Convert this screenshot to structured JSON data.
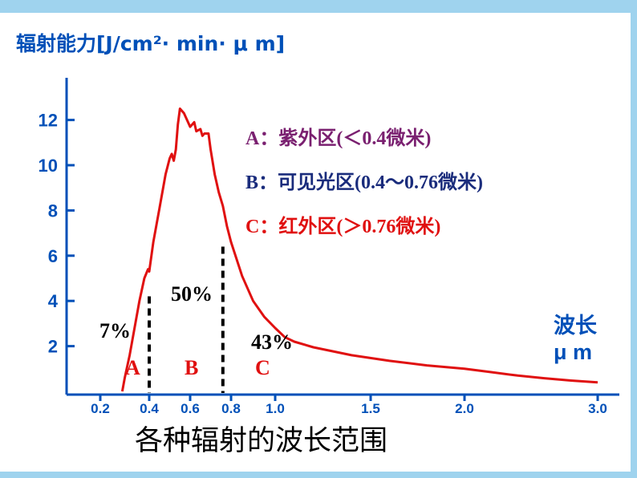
{
  "colors": {
    "axis": "#0050b8",
    "curve": "#e01010",
    "legend_a": "#7a2070",
    "legend_b": "#1a2c7c",
    "legend_c": "#e01010",
    "frame": "#9fd3ee"
  },
  "chart_data": {
    "type": "line",
    "title": "",
    "ylabel": "辐射能力[J/cm²· min· μ m]",
    "xlabel_top": "波长",
    "xlabel_unit": "μ m",
    "xlabel": "各种辐射的波长范围",
    "xlim": [
      0.2,
      3.0
    ],
    "ylim": [
      0,
      14
    ],
    "x_ticks": [
      0.2,
      0.4,
      0.6,
      0.8,
      1.0,
      1.5,
      2.0,
      3.0
    ],
    "x_tick_labels": [
      "0.2",
      "0.4",
      "0.6",
      "0.8",
      "1.0",
      "1.5",
      "2.0",
      "3.0"
    ],
    "y_ticks": [
      2,
      4,
      6,
      8,
      10,
      12
    ],
    "y_tick_labels": [
      "2",
      "4",
      "6",
      "8",
      "10",
      "12"
    ],
    "series": [
      {
        "name": "",
        "x": [
          0.29,
          0.3,
          0.32,
          0.34,
          0.36,
          0.38,
          0.395,
          0.4,
          0.42,
          0.45,
          0.48,
          0.5,
          0.51,
          0.52,
          0.53,
          0.54,
          0.55,
          0.57,
          0.6,
          0.62,
          0.63,
          0.65,
          0.66,
          0.67,
          0.69,
          0.7,
          0.72,
          0.74,
          0.76,
          0.78,
          0.8,
          0.85,
          0.9,
          0.95,
          1.0,
          1.05,
          1.1,
          1.2,
          1.4,
          1.6,
          1.8,
          2.0,
          2.2,
          2.4,
          2.6,
          2.8,
          3.0
        ],
        "y": [
          0.0,
          0.6,
          1.6,
          2.8,
          4.0,
          5.0,
          5.4,
          5.3,
          6.6,
          8.1,
          9.6,
          10.3,
          10.5,
          10.2,
          10.7,
          11.8,
          12.5,
          12.3,
          11.7,
          11.9,
          11.5,
          11.6,
          11.3,
          11.4,
          11.4,
          10.7,
          9.6,
          8.8,
          8.2,
          7.3,
          6.6,
          5.1,
          4.0,
          3.3,
          2.8,
          2.4,
          2.2,
          1.95,
          1.6,
          1.35,
          1.15,
          1.0,
          0.85,
          0.7,
          0.58,
          0.48,
          0.4
        ]
      }
    ],
    "dividers": [
      0.4,
      0.76
    ],
    "regions": [
      {
        "band": "A",
        "percent": "7%"
      },
      {
        "band": "B",
        "percent": "50%"
      },
      {
        "band": "C",
        "percent": "43%"
      }
    ],
    "legend": [
      "A：紫外区(＜0.4微米)",
      "B：可见光区(0.4～0.76微米)",
      "C：红外区(＞0.76微米)"
    ]
  }
}
